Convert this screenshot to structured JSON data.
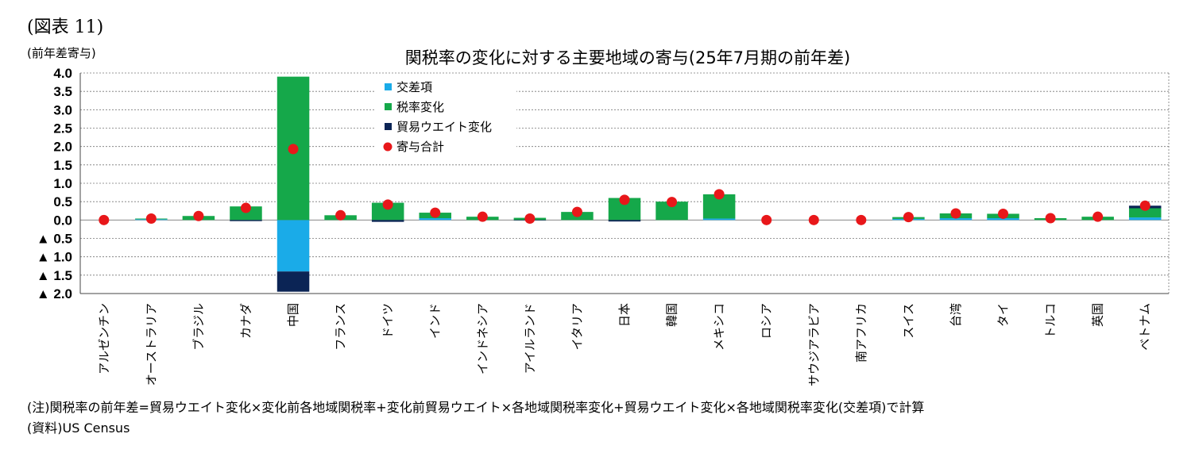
{
  "figure_label": "(図表 11)",
  "y_unit": "(前年差寄与)",
  "notes": [
    "(注)関税率の前年差=貿易ウエイト変化×変化前各地域関税率+変化前貿易ウエイト×各地域関税率変化+貿易ウエイト変化×各地域関税率変化(交差項)で計算",
    "(資料)US Census"
  ],
  "chart_data": {
    "type": "bar",
    "stacked": true,
    "title": "関税率の変化に対する主要地域の寄与(25年7月期の前年差)",
    "ylim": [
      -2.0,
      4.0
    ],
    "yticks": [
      4.0,
      3.5,
      3.0,
      2.5,
      2.0,
      1.5,
      1.0,
      0.5,
      0.0,
      -0.5,
      -1.0,
      -1.5,
      -2.0
    ],
    "ytick_labels": [
      "4.0",
      "3.5",
      "3.0",
      "2.5",
      "2.0",
      "1.5",
      "1.0",
      "0.5",
      "0.0",
      "▲ 0.5",
      "▲ 1.0",
      "▲ 1.5",
      "▲ 2.0"
    ],
    "grid": true,
    "legend_position": "top-center",
    "categories": [
      "アルゼンチン",
      "オーストラリア",
      "ブラジル",
      "カナダ",
      "中国",
      "フランス",
      "ドイツ",
      "インド",
      "インドネシア",
      "アイルランド",
      "イタリア",
      "日本",
      "韓国",
      "メキシコ",
      "ロシア",
      "サウジアラビア",
      "南アフリカ",
      "スイス",
      "台湾",
      "タイ",
      "トルコ",
      "英国",
      "ベトナム"
    ],
    "series": [
      {
        "name": "交差項",
        "kind": "bar",
        "color": "#1AABE8",
        "values": [
          0.0,
          0.02,
          0.0,
          0.0,
          -1.4,
          0.0,
          0.0,
          0.05,
          0.0,
          0.0,
          0.0,
          0.0,
          0.0,
          0.04,
          0.0,
          0.0,
          0.0,
          0.03,
          0.05,
          0.05,
          0.0,
          0.0,
          0.07
        ]
      },
      {
        "name": "税率変化",
        "kind": "bar",
        "color": "#15A84A",
        "values": [
          0.0,
          0.02,
          0.11,
          0.37,
          3.9,
          0.13,
          0.47,
          0.15,
          0.09,
          0.06,
          0.22,
          0.6,
          0.5,
          0.66,
          0.0,
          0.0,
          0.0,
          0.05,
          0.13,
          0.12,
          0.05,
          0.09,
          0.25
        ]
      },
      {
        "name": "貿易ウエイト変化",
        "kind": "bar",
        "color": "#0B2455",
        "values": [
          0.0,
          0.0,
          0.0,
          -0.03,
          -0.55,
          0.0,
          -0.05,
          0.0,
          0.0,
          -0.01,
          0.0,
          -0.04,
          0.0,
          0.0,
          0.0,
          0.0,
          0.0,
          0.0,
          0.0,
          0.0,
          0.0,
          0.0,
          0.07
        ]
      },
      {
        "name": "寄与合計",
        "kind": "dot",
        "color": "#E8171A",
        "values": [
          0.0,
          0.04,
          0.11,
          0.33,
          1.93,
          0.13,
          0.42,
          0.2,
          0.09,
          0.04,
          0.22,
          0.55,
          0.49,
          0.7,
          0.0,
          0.0,
          0.0,
          0.08,
          0.18,
          0.17,
          0.05,
          0.09,
          0.39
        ]
      }
    ]
  }
}
